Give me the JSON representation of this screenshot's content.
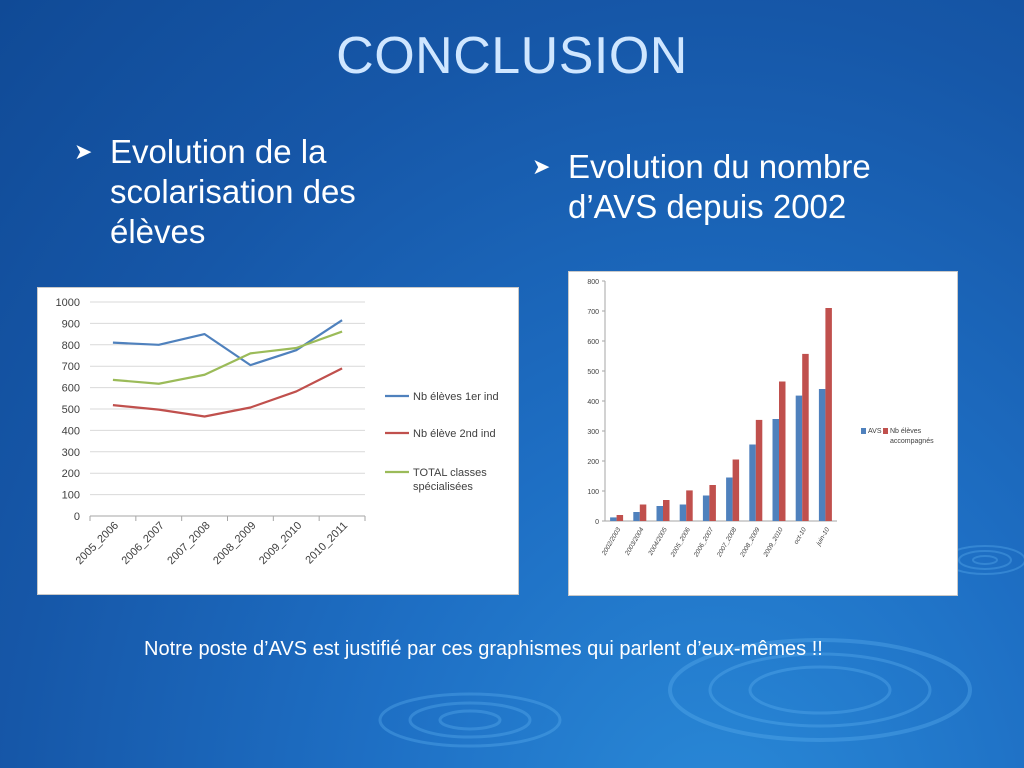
{
  "slide": {
    "title": "CONCLUSION",
    "bullet_left": "Evolution de la scolarisation des élèves",
    "bullet_right": "Evolution du nombre d’AVS depuis 2002",
    "note": "Notre poste d’AVS est justifié par ces graphismes qui parlent d’eux-mêmes !!",
    "accent_color": "#cfe6ff",
    "bullet_icon": "arrow-bullet-icon"
  },
  "chart_data": [
    {
      "type": "line",
      "categories": [
        "2005_2006",
        "2006_2007",
        "2007_2008",
        "2008_2009",
        "2009_2010",
        "2010_2011"
      ],
      "ylim": [
        0,
        1000
      ],
      "yticks": [
        0,
        100,
        200,
        300,
        400,
        500,
        600,
        700,
        800,
        900,
        1000
      ],
      "grid": true,
      "legend": "right",
      "series": [
        {
          "name": "Nb élèves 1er ind",
          "color": "#4f81bd",
          "values": [
            810,
            800,
            850,
            705,
            775,
            915
          ]
        },
        {
          "name": "Nb élève 2nd ind",
          "color": "#c0504d",
          "values": [
            518,
            497,
            465,
            507,
            582,
            690
          ]
        },
        {
          "name": "TOTAL classes spécialisées",
          "color": "#9bbb59",
          "values": [
            636,
            618,
            660,
            760,
            785,
            862
          ]
        }
      ]
    },
    {
      "type": "bar",
      "categories": [
        "2002/2003",
        "2003/2004",
        "2004/2005",
        "2005_2006",
        "2006_2007",
        "2007_2008",
        "2008_2009",
        "2009_2010",
        "oct-10",
        "juin-10"
      ],
      "ylim": [
        0,
        800
      ],
      "yticks": [
        0,
        100,
        200,
        300,
        400,
        500,
        600,
        700,
        800
      ],
      "grid": false,
      "legend": "right",
      "series": [
        {
          "name": "AVS",
          "color": "#4f81bd",
          "values": [
            12,
            30,
            50,
            55,
            85,
            145,
            255,
            340,
            418,
            440
          ]
        },
        {
          "name": "Nb élèves accompagnés",
          "color": "#c0504d",
          "values": [
            20,
            55,
            70,
            102,
            120,
            205,
            337,
            465,
            557,
            710
          ]
        }
      ]
    }
  ]
}
